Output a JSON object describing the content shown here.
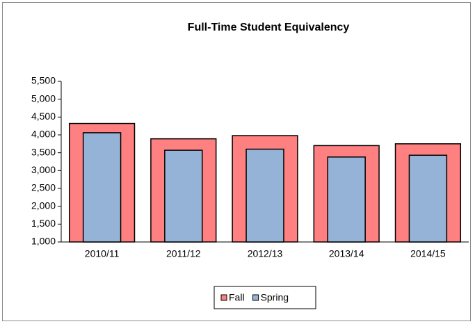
{
  "chart_data": {
    "type": "bar",
    "title": "Full-Time Student Equivalency",
    "categories": [
      "2010/11",
      "2011/12",
      "2012/13",
      "2013/14",
      "2014/15"
    ],
    "series": [
      {
        "name": "Fall",
        "color": "#ff8080",
        "values": [
          4320,
          3890,
          3980,
          3700,
          3750
        ]
      },
      {
        "name": "Spring",
        "color": "#95b3d7",
        "values": [
          4060,
          3570,
          3600,
          3380,
          3430
        ]
      }
    ],
    "ylim": [
      1000,
      5500
    ],
    "yticks": [
      {
        "value": 1000,
        "label": "1,000"
      },
      {
        "value": 1500,
        "label": "1,500"
      },
      {
        "value": 2000,
        "label": "2,000"
      },
      {
        "value": 2500,
        "label": "2,500"
      },
      {
        "value": 3000,
        "label": "3,000"
      },
      {
        "value": 3500,
        "label": "3,500"
      },
      {
        "value": 4000,
        "label": "4,000"
      },
      {
        "value": 4500,
        "label": "4,500"
      },
      {
        "value": 5000,
        "label": "5,000"
      },
      {
        "value": 5500,
        "label": "5,500"
      }
    ],
    "grid": false,
    "legend": "bottom"
  }
}
